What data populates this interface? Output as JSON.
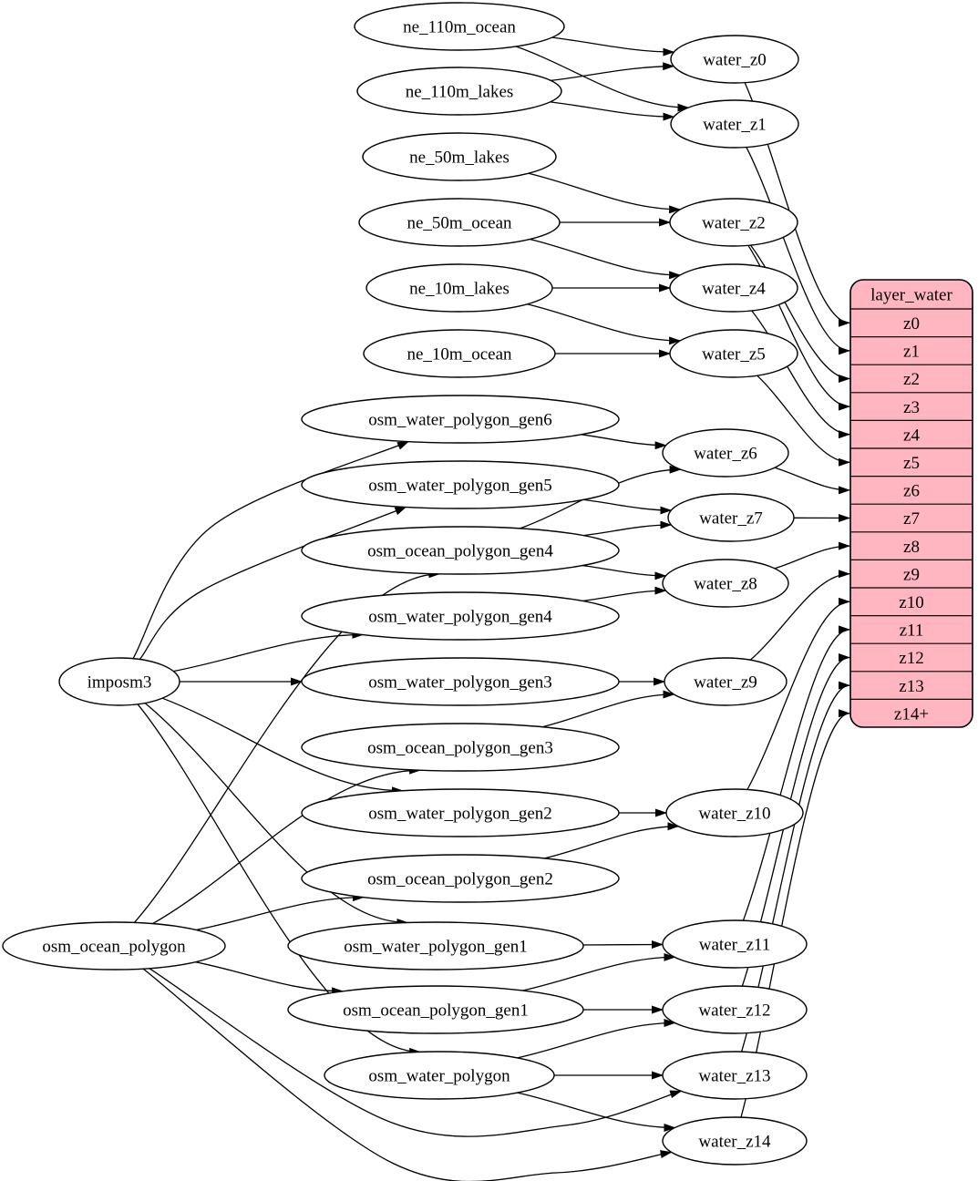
{
  "diagram": {
    "background": "#ffffff",
    "colors": {
      "edge": "#000000",
      "node_fill": "#ffffff",
      "node_stroke": "#000000",
      "table_fill": "#ffb6c1",
      "table_stroke": "#000000",
      "text": "#000000"
    },
    "nodes": [
      "ne_110m_ocean",
      "ne_110m_lakes",
      "ne_50m_lakes",
      "ne_50m_ocean",
      "ne_10m_lakes",
      "ne_10m_ocean",
      "osm_water_polygon_gen6",
      "osm_water_polygon_gen5",
      "osm_ocean_polygon_gen4",
      "osm_water_polygon_gen4",
      "osm_water_polygon_gen3",
      "osm_ocean_polygon_gen3",
      "osm_water_polygon_gen2",
      "osm_ocean_polygon_gen2",
      "osm_water_polygon_gen1",
      "osm_ocean_polygon_gen1",
      "osm_water_polygon",
      "imposm3",
      "osm_ocean_polygon",
      "water_z0",
      "water_z1",
      "water_z2",
      "water_z4",
      "water_z5",
      "water_z6",
      "water_z7",
      "water_z8",
      "water_z9",
      "water_z10",
      "water_z11",
      "water_z12",
      "water_z13",
      "water_z14"
    ],
    "edges": [
      [
        "ne_110m_ocean",
        "water_z0"
      ],
      [
        "ne_110m_ocean",
        "water_z1"
      ],
      [
        "ne_110m_lakes",
        "water_z0"
      ],
      [
        "ne_110m_lakes",
        "water_z1"
      ],
      [
        "ne_50m_lakes",
        "water_z2"
      ],
      [
        "ne_50m_ocean",
        "water_z2"
      ],
      [
        "ne_50m_ocean",
        "water_z4"
      ],
      [
        "ne_10m_lakes",
        "water_z4"
      ],
      [
        "ne_10m_lakes",
        "water_z5"
      ],
      [
        "ne_10m_ocean",
        "water_z5"
      ],
      [
        "imposm3",
        "osm_water_polygon_gen6"
      ],
      [
        "imposm3",
        "osm_water_polygon_gen5"
      ],
      [
        "imposm3",
        "osm_water_polygon_gen4"
      ],
      [
        "imposm3",
        "osm_water_polygon_gen3"
      ],
      [
        "imposm3",
        "osm_water_polygon_gen2"
      ],
      [
        "imposm3",
        "osm_water_polygon_gen1"
      ],
      [
        "imposm3",
        "osm_water_polygon"
      ],
      [
        "osm_ocean_polygon",
        "osm_ocean_polygon_gen4"
      ],
      [
        "osm_ocean_polygon",
        "osm_ocean_polygon_gen3"
      ],
      [
        "osm_ocean_polygon",
        "osm_ocean_polygon_gen2"
      ],
      [
        "osm_ocean_polygon",
        "osm_ocean_polygon_gen1"
      ],
      [
        "osm_ocean_polygon",
        "water_z13"
      ],
      [
        "osm_ocean_polygon",
        "water_z14"
      ],
      [
        "osm_water_polygon_gen6",
        "water_z6"
      ],
      [
        "osm_water_polygon_gen5",
        "water_z7"
      ],
      [
        "osm_ocean_polygon_gen4",
        "water_z6"
      ],
      [
        "osm_ocean_polygon_gen4",
        "water_z7"
      ],
      [
        "osm_ocean_polygon_gen4",
        "water_z8"
      ],
      [
        "osm_water_polygon_gen4",
        "water_z8"
      ],
      [
        "osm_water_polygon_gen3",
        "water_z9"
      ],
      [
        "osm_ocean_polygon_gen3",
        "water_z9"
      ],
      [
        "osm_water_polygon_gen2",
        "water_z10"
      ],
      [
        "osm_ocean_polygon_gen2",
        "water_z10"
      ],
      [
        "osm_water_polygon_gen1",
        "water_z11"
      ],
      [
        "osm_ocean_polygon_gen1",
        "water_z11"
      ],
      [
        "osm_ocean_polygon_gen1",
        "water_z12"
      ],
      [
        "osm_water_polygon",
        "water_z12"
      ],
      [
        "osm_water_polygon",
        "water_z13"
      ],
      [
        "osm_water_polygon",
        "water_z14"
      ],
      [
        "water_z0",
        "layer_water.z0"
      ],
      [
        "water_z1",
        "layer_water.z1"
      ],
      [
        "water_z2",
        "layer_water.z2"
      ],
      [
        "water_z2",
        "layer_water.z3"
      ],
      [
        "water_z4",
        "layer_water.z4"
      ],
      [
        "water_z5",
        "layer_water.z5"
      ],
      [
        "water_z6",
        "layer_water.z6"
      ],
      [
        "water_z7",
        "layer_water.z7"
      ],
      [
        "water_z8",
        "layer_water.z8"
      ],
      [
        "water_z9",
        "layer_water.z9"
      ],
      [
        "water_z10",
        "layer_water.z10"
      ],
      [
        "water_z11",
        "layer_water.z11"
      ],
      [
        "water_z12",
        "layer_water.z12"
      ],
      [
        "water_z13",
        "layer_water.z13"
      ],
      [
        "water_z14",
        "layer_water.z14+"
      ]
    ],
    "table": {
      "title": "layer_water",
      "rows": [
        "z0",
        "z1",
        "z2",
        "z3",
        "z4",
        "z5",
        "z6",
        "z7",
        "z8",
        "z9",
        "z10",
        "z11",
        "z12",
        "z13",
        "z14+"
      ]
    }
  }
}
